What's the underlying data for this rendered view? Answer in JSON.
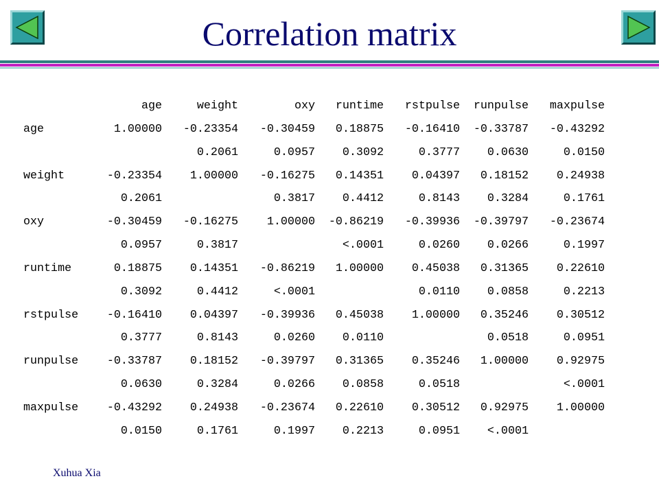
{
  "title": "Correlation matrix",
  "nav": {
    "prev_icon": "triangle-left-icon",
    "next_icon": "triangle-right-icon",
    "color": "#2e9fa0"
  },
  "header_rule_colors": [
    "#2f7f7f",
    "#c020c0",
    "#8fc7c7"
  ],
  "columns": [
    "age",
    "weight",
    "oxy",
    "runtime",
    "rstpulse",
    "runpulse",
    "maxpulse"
  ],
  "rows": [
    {
      "name": "age",
      "r": [
        "1.00000",
        "-0.23354",
        "-0.30459",
        "0.18875",
        "-0.16410",
        "-0.33787",
        "-0.43292"
      ],
      "p": [
        "",
        "0.2061",
        "0.0957",
        "0.3092",
        "0.3777",
        "0.0630",
        "0.0150"
      ]
    },
    {
      "name": "weight",
      "r": [
        "-0.23354",
        "1.00000",
        "-0.16275",
        "0.14351",
        "0.04397",
        "0.18152",
        "0.24938"
      ],
      "p": [
        "0.2061",
        "",
        "0.3817",
        "0.4412",
        "0.8143",
        "0.3284",
        "0.1761"
      ]
    },
    {
      "name": "oxy",
      "r": [
        "-0.30459",
        "-0.16275",
        "1.00000",
        "-0.86219",
        "-0.39936",
        "-0.39797",
        "-0.23674"
      ],
      "p": [
        "0.0957",
        "0.3817",
        "",
        "<.0001",
        "0.0260",
        "0.0266",
        "0.1997"
      ]
    },
    {
      "name": "runtime",
      "r": [
        "0.18875",
        "0.14351",
        "-0.86219",
        "1.00000",
        "0.45038",
        "0.31365",
        "0.22610"
      ],
      "p": [
        "0.3092",
        "0.4412",
        "<.0001",
        "",
        "0.0110",
        "0.0858",
        "0.2213"
      ]
    },
    {
      "name": "rstpulse",
      "r": [
        "-0.16410",
        "0.04397",
        "-0.39936",
        "0.45038",
        "1.00000",
        "0.35246",
        "0.30512"
      ],
      "p": [
        "0.3777",
        "0.8143",
        "0.0260",
        "0.0110",
        "",
        "0.0518",
        "0.0951"
      ]
    },
    {
      "name": "runpulse",
      "r": [
        "-0.33787",
        "0.18152",
        "-0.39797",
        "0.31365",
        "0.35246",
        "1.00000",
        "0.92975"
      ],
      "p": [
        "0.0630",
        "0.3284",
        "0.0266",
        "0.0858",
        "0.0518",
        "",
        "<.0001"
      ]
    },
    {
      "name": "maxpulse",
      "r": [
        "-0.43292",
        "0.24938",
        "-0.23674",
        "0.22610",
        "0.30512",
        "0.92975",
        "1.00000"
      ],
      "p": [
        "0.0150",
        "0.1761",
        "0.1997",
        "0.2213",
        "0.0951",
        "<.0001",
        ""
      ]
    }
  ],
  "footer": {
    "author": "Xuhua Xia"
  }
}
